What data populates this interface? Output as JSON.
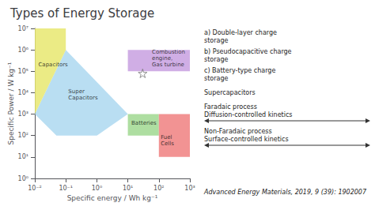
{
  "chart_data": {
    "type": "polygon",
    "title": "Types of Energy Storage",
    "xlabel": "Specific energy / Wh kg⁻¹",
    "ylabel": "Specific Power / W kg⁻¹",
    "log": true,
    "grid": false,
    "xlim": [
      0.01,
      1000
    ],
    "ylim": [
      1,
      10000000
    ],
    "xticks": [
      {
        "value": 0.01,
        "label": "10⁻²"
      },
      {
        "value": 0.1,
        "label": "10⁻¹"
      },
      {
        "value": 1,
        "label": "10⁰"
      },
      {
        "value": 10,
        "label": "10¹"
      },
      {
        "value": 100,
        "label": "10²"
      },
      {
        "value": 1000,
        "label": "10³"
      }
    ],
    "yticks": [
      {
        "value": 1,
        "label": "10⁰"
      },
      {
        "value": 10,
        "label": "10¹"
      },
      {
        "value": 100,
        "label": "10²"
      },
      {
        "value": 1000,
        "label": "10³"
      },
      {
        "value": 10000,
        "label": "10⁴"
      },
      {
        "value": 100000,
        "label": "10⁵"
      },
      {
        "value": 1000000,
        "label": "10⁶"
      },
      {
        "value": 10000000,
        "label": "10⁷"
      }
    ],
    "series": [
      {
        "type": "polygon",
        "color": "#add8f0",
        "points": [
          [
            0.01,
            1000
          ],
          [
            0.1,
            1000000
          ],
          [
            10,
            1000
          ],
          [
            1,
            100
          ],
          [
            0.05,
            100
          ]
        ]
      },
      {
        "type": "polygon",
        "color": "#e8e870",
        "points": [
          [
            0.01,
            1000
          ],
          [
            0.01,
            10000000
          ],
          [
            0.1,
            10000000
          ],
          [
            0.1,
            1000000
          ]
        ]
      },
      {
        "type": "polygon",
        "color": "#c8a0e0",
        "points": [
          [
            10,
            100000
          ],
          [
            1000,
            100000
          ],
          [
            1000,
            1000000
          ],
          [
            10,
            1000000
          ]
        ]
      },
      {
        "type": "polygon",
        "color": "#a0d890",
        "points": [
          [
            10,
            100
          ],
          [
            100,
            100
          ],
          [
            100,
            1000
          ],
          [
            10,
            1000
          ]
        ]
      },
      {
        "type": "polygon",
        "color": "#f08080",
        "points": [
          [
            100,
            10
          ],
          [
            1000,
            10
          ],
          [
            1000,
            1000
          ],
          [
            100,
            1000
          ]
        ]
      },
      {
        "type": "scatter",
        "marker": "star",
        "color": "#777777",
        "points": [
          [
            30,
            80000
          ]
        ]
      }
    ],
    "annotations": [
      {
        "text": "Capacitors",
        "x": 0.013,
        "y": 200000
      },
      {
        "text": "Super\nCapacitors",
        "x": 0.12,
        "y": 8000
      },
      {
        "text": "Batteries",
        "x": 13,
        "y": 380
      },
      {
        "text": "Fuel\nCells",
        "x": 115,
        "y": 60
      },
      {
        "text": "Combustion\nengine,\nGas turbine",
        "x": 60,
        "y": 400000
      },
      {
        "text": "a) Double-layer charge\nstorage"
      },
      {
        "text": "b) Pseudocapacitive charge\nstorage"
      },
      {
        "text": "c) Battery-type charge\nstorage"
      },
      {
        "text": "Supercapacitors"
      },
      {
        "text": "Faradaic process\nDiffusion-controlled kinetics"
      },
      {
        "text": "Non-Faradaic process\nSurface-controlled kinetics"
      },
      {
        "text": "Advanced Energy Materials, 2019, 9 (39): 1902007"
      }
    ]
  }
}
